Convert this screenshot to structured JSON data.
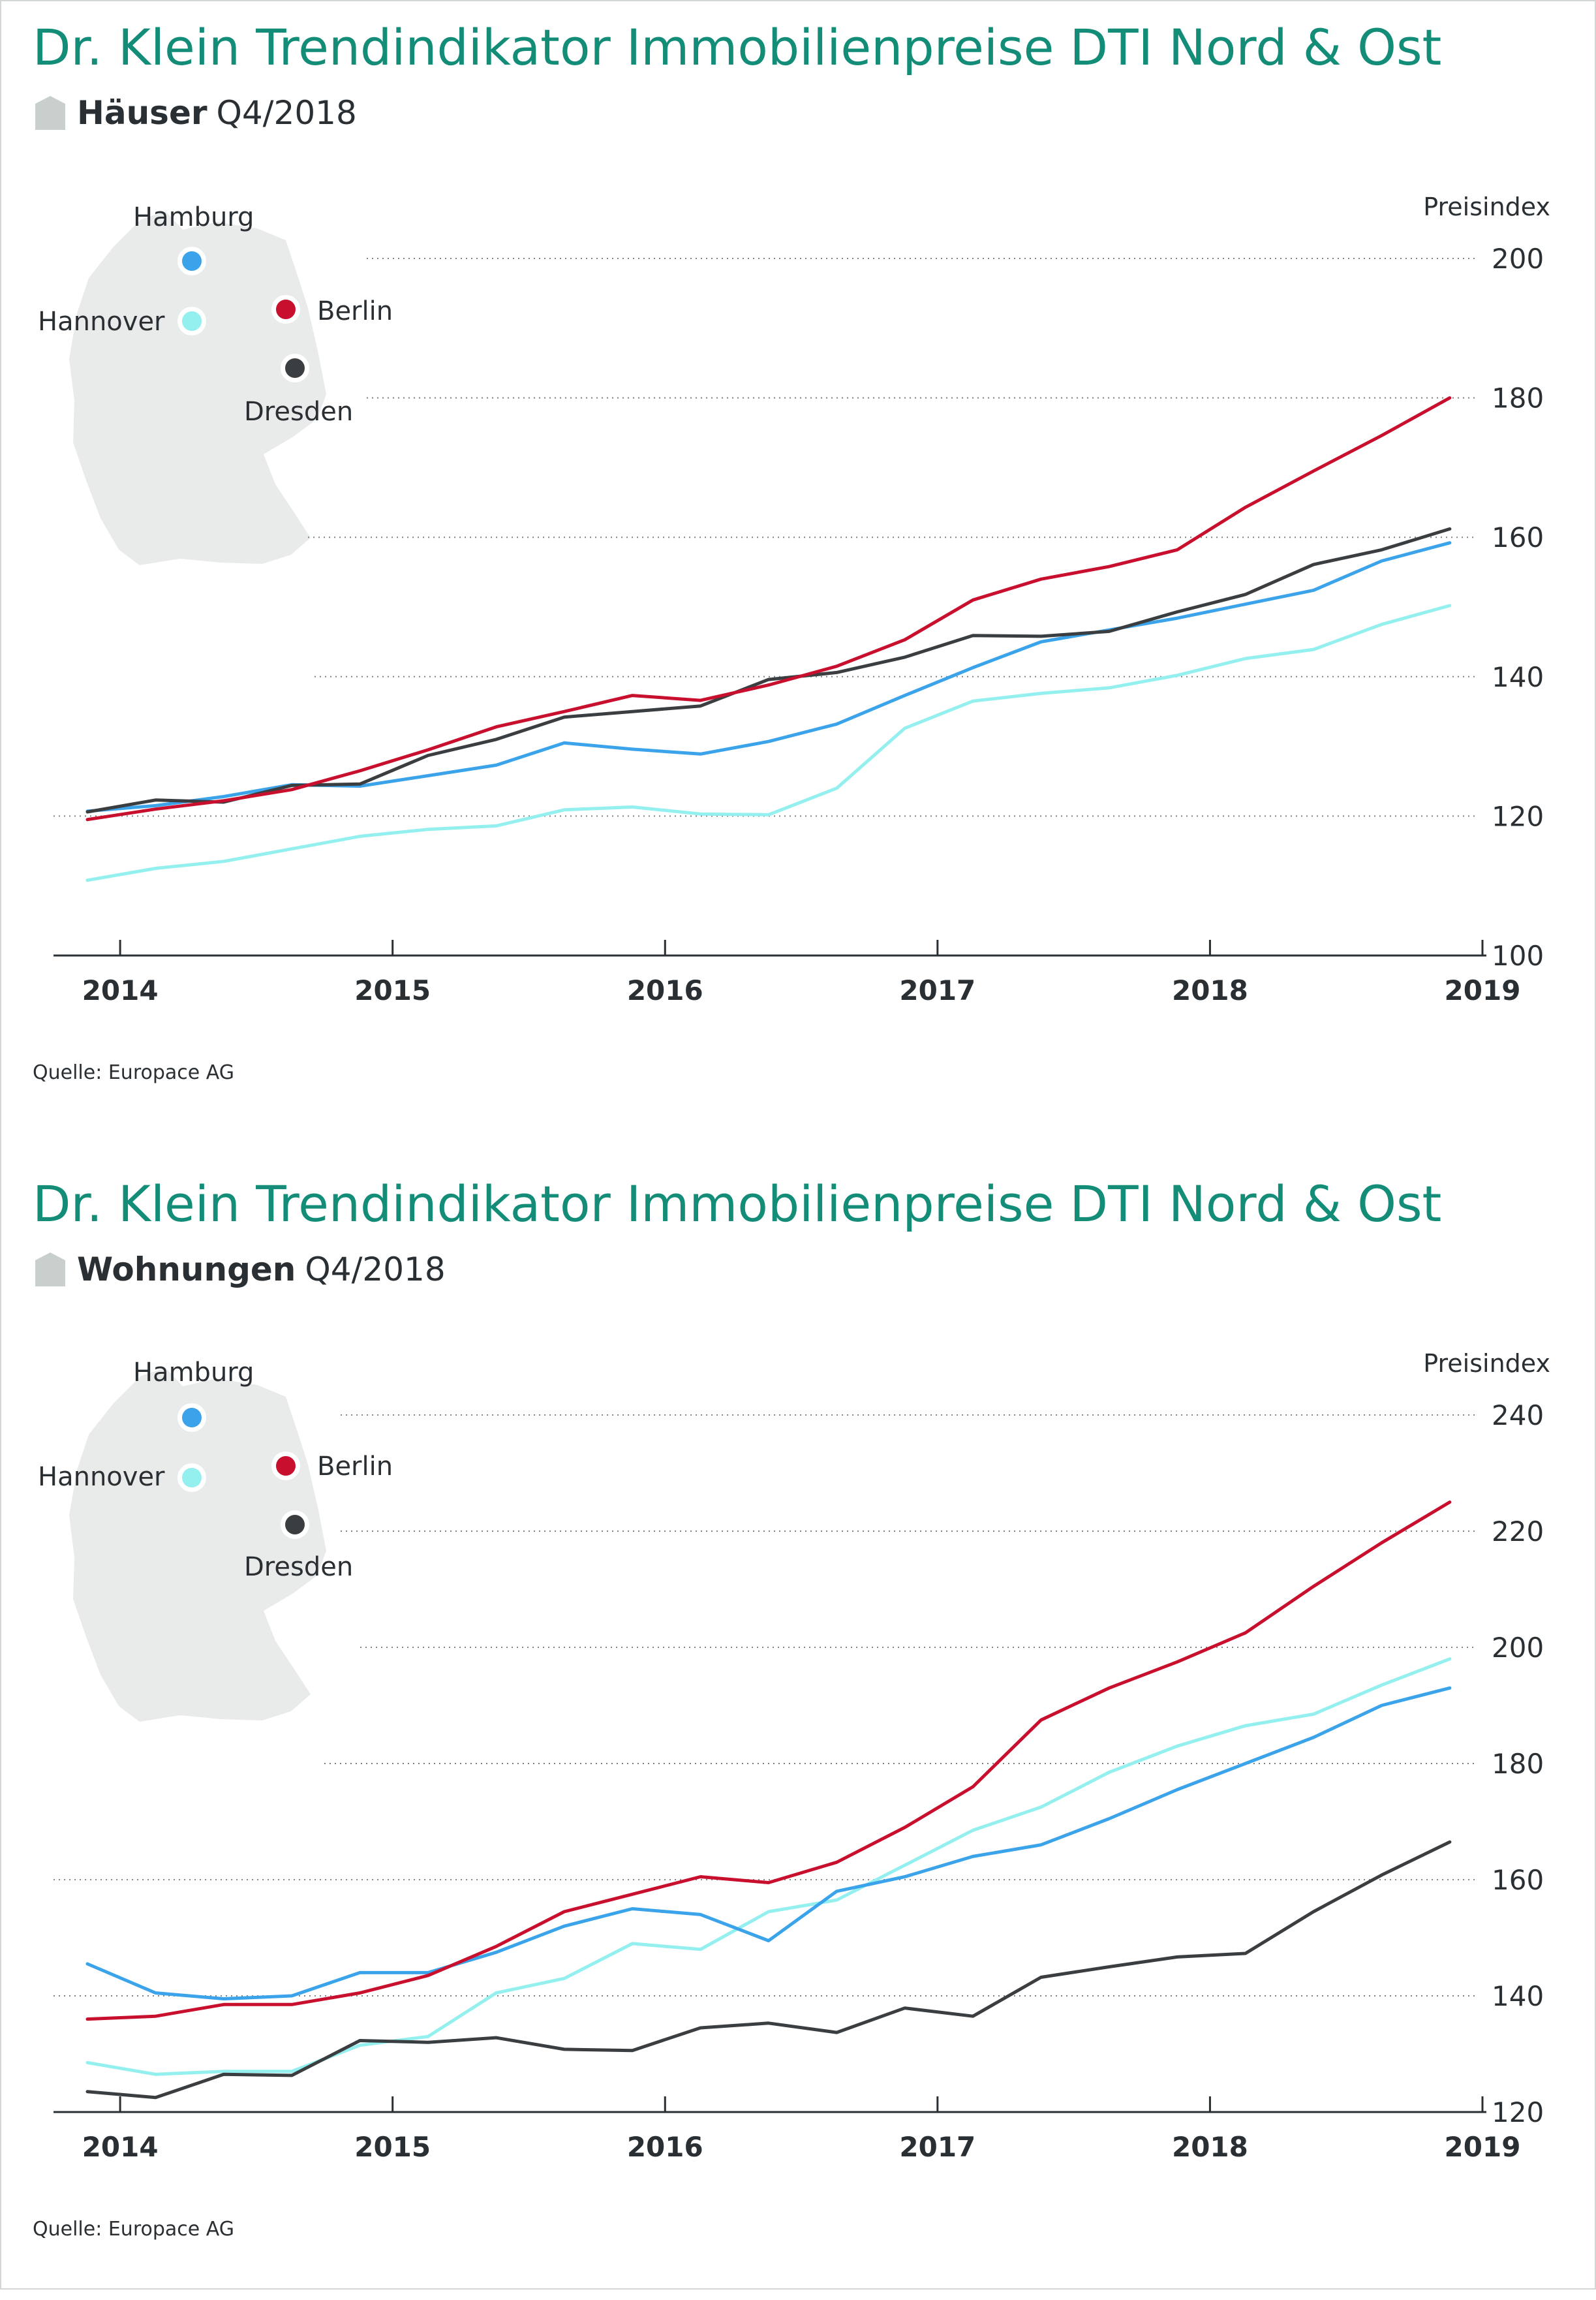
{
  "panels": [
    {
      "title": "Dr. Klein Trendindikator Immobilienpreise DTI Nord & Ost",
      "subtitle_bold": "Häuser",
      "subtitle_rest": "Q4/2018",
      "source": "Quelle: Europace AG",
      "map_labels": {
        "hamburg": "Hamburg",
        "hannover": "Hannover",
        "berlin": "Berlin",
        "dresden": "Dresden"
      }
    },
    {
      "title": "Dr. Klein Trendindikator Immobilienpreise DTI Nord & Ost",
      "subtitle_bold": "Wohnungen",
      "subtitle_rest": "Q4/2018",
      "source": "Quelle: Europace AG",
      "map_labels": {
        "hamburg": "Hamburg",
        "hannover": "Hannover",
        "berlin": "Berlin",
        "dresden": "Dresden"
      }
    }
  ],
  "colors": {
    "title": "#138d78",
    "map": "#e9ebeb",
    "grid": "#7e8386",
    "axis": "#2a2f33",
    "house_icon": "#c9cfcc"
  },
  "chart_data": [
    {
      "type": "line",
      "title": "Dr. Klein Trendindikator Immobilienpreise DTI Nord & Ost",
      "subtitle": "Häuser Q4/2018",
      "ylabel": "Preisindex",
      "ylim": [
        100,
        200
      ],
      "yticks": [
        100,
        120,
        140,
        160,
        180,
        200
      ],
      "xlim": [
        2013.88,
        2019.0
      ],
      "xticks": [
        "2014",
        "2015",
        "2016",
        "2017",
        "2018",
        "2019"
      ],
      "grid": true,
      "x": [
        2013.88,
        2014.13,
        2014.38,
        2014.63,
        2014.88,
        2015.13,
        2015.38,
        2015.63,
        2015.88,
        2016.13,
        2016.38,
        2016.63,
        2016.88,
        2017.13,
        2017.38,
        2017.63,
        2017.88,
        2018.13,
        2018.38,
        2018.63,
        2018.88
      ],
      "series": [
        {
          "name": "Berlin",
          "color": "#c8102e",
          "values": [
            119.5,
            121.0,
            122.2,
            123.8,
            126.5,
            129.5,
            132.8,
            135.0,
            137.3,
            136.6,
            138.8,
            141.5,
            145.3,
            151.0,
            154.0,
            155.8,
            158.2,
            164.3,
            169.5,
            174.6,
            180.0
          ]
        },
        {
          "name": "Dresden",
          "color": "#3b3e41",
          "values": [
            120.6,
            122.3,
            122.0,
            124.4,
            124.6,
            128.7,
            131.0,
            134.2,
            135.0,
            135.8,
            139.6,
            140.6,
            142.8,
            145.9,
            145.8,
            146.5,
            149.3,
            151.8,
            156.1,
            158.2,
            161.2
          ]
        },
        {
          "name": "Hamburg",
          "color": "#3ba3ea",
          "values": [
            120.7,
            121.5,
            122.8,
            124.5,
            124.3,
            125.8,
            127.3,
            130.5,
            129.6,
            128.9,
            130.7,
            133.2,
            137.3,
            141.3,
            145.0,
            146.7,
            148.4,
            150.4,
            152.4,
            156.6,
            159.2
          ]
        },
        {
          "name": "Hannover",
          "color": "#94f0ee",
          "values": [
            110.8,
            112.5,
            113.5,
            115.3,
            117.1,
            118.1,
            118.6,
            120.9,
            121.3,
            120.3,
            120.2,
            124.0,
            132.6,
            136.5,
            137.6,
            138.4,
            140.2,
            142.6,
            143.9,
            147.5,
            150.2
          ]
        }
      ]
    },
    {
      "type": "line",
      "title": "Dr. Klein Trendindikator Immobilienpreise DTI Nord & Ost",
      "subtitle": "Wohnungen Q4/2018",
      "ylabel": "Preisindex",
      "ylim": [
        120,
        240
      ],
      "yticks": [
        120,
        140,
        160,
        180,
        200,
        220,
        240
      ],
      "xlim": [
        2013.88,
        2019.0
      ],
      "xticks": [
        "2014",
        "2015",
        "2016",
        "2017",
        "2018",
        "2019"
      ],
      "grid": true,
      "x": [
        2013.88,
        2014.13,
        2014.38,
        2014.63,
        2014.88,
        2015.13,
        2015.38,
        2015.63,
        2015.88,
        2016.13,
        2016.38,
        2016.63,
        2016.88,
        2017.13,
        2017.38,
        2017.63,
        2017.88,
        2018.13,
        2018.38,
        2018.63,
        2018.88
      ],
      "series": [
        {
          "name": "Berlin",
          "color": "#c8102e",
          "values": [
            136.0,
            136.5,
            138.5,
            138.5,
            140.5,
            143.5,
            148.5,
            154.5,
            157.5,
            160.5,
            159.5,
            163.0,
            169.0,
            176.0,
            187.5,
            193.0,
            197.5,
            202.5,
            210.5,
            218.0,
            225.0
          ]
        },
        {
          "name": "Dresden",
          "color": "#3b3e41",
          "values": [
            123.5,
            122.5,
            126.5,
            126.3,
            132.3,
            132.0,
            132.8,
            130.8,
            130.6,
            134.5,
            135.3,
            133.7,
            137.9,
            136.5,
            143.2,
            145.0,
            146.7,
            147.3,
            154.5,
            160.8,
            166.5
          ]
        },
        {
          "name": "Hamburg",
          "color": "#3ba3ea",
          "values": [
            145.5,
            140.5,
            139.5,
            140.0,
            144.0,
            144.0,
            147.5,
            152.0,
            155.0,
            154.0,
            149.5,
            158.0,
            160.5,
            164.0,
            166.0,
            170.5,
            175.5,
            180.0,
            184.5,
            190.0,
            193.0
          ]
        },
        {
          "name": "Hannover",
          "color": "#94f0ee",
          "values": [
            128.5,
            126.5,
            127.0,
            127.0,
            131.5,
            133.0,
            140.5,
            143.0,
            149.0,
            148.0,
            154.5,
            156.5,
            162.5,
            168.5,
            172.5,
            178.5,
            183.0,
            186.5,
            188.5,
            193.5,
            198.0
          ]
        }
      ]
    }
  ]
}
